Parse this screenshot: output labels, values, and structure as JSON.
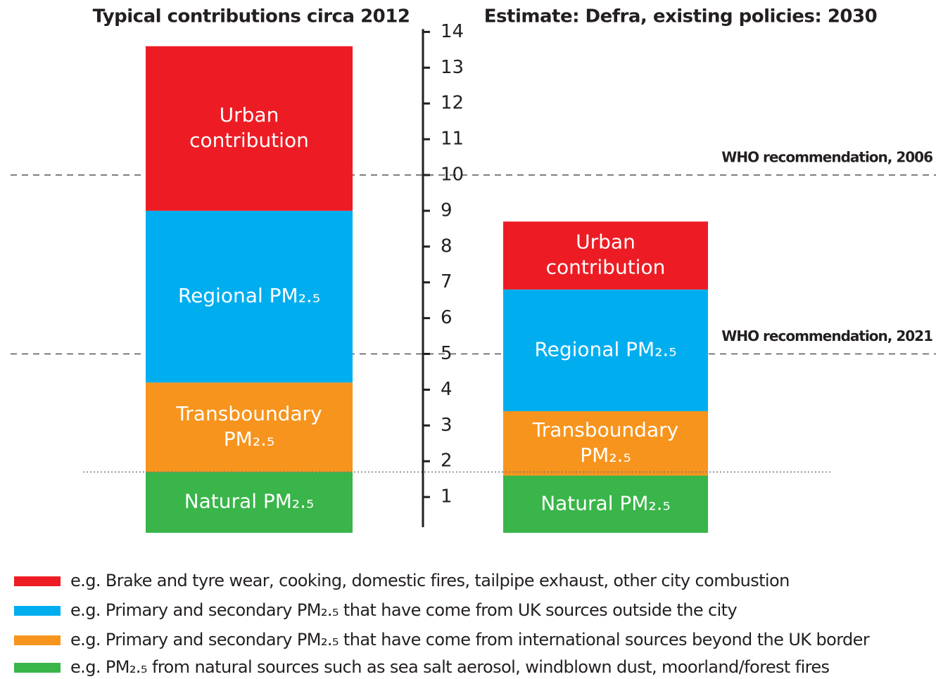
{
  "chart_data": {
    "type": "stacked_bar",
    "categories": [
      "Typical contributions circa 2012",
      "Estimate: Defra, existing policies: 2030"
    ],
    "series": [
      {
        "name": "Urban contribution",
        "color": "#ed1c24",
        "values": [
          4.6,
          1.9
        ],
        "description": "e.g. Brake and tyre wear, cooking, domestic fires, tailpipe exhaust, other city combustion"
      },
      {
        "name": "Regional PM₂.₅",
        "color": "#00aeef",
        "values": [
          4.8,
          3.4
        ],
        "description": "e.g. Primary and secondary PM₂.₅ that have come from UK sources outside the city"
      },
      {
        "name": "Transboundary PM₂.₅",
        "color": "#f7941d",
        "values": [
          2.5,
          1.8
        ],
        "description": "e.g. Primary and secondary PM₂.₅ that have come from international sources beyond the UK border"
      },
      {
        "name": "Natural PM₂.₅",
        "color": "#39b54a",
        "values": [
          1.7,
          1.6
        ],
        "description": "e.g. PM₂.₅ from natural sources such as sea salt aerosol, windblown dust, moorland/forest fires"
      }
    ],
    "ylim": [
      0,
      14
    ],
    "yticks": [
      1,
      2,
      3,
      4,
      5,
      6,
      7,
      8,
      9,
      10,
      11,
      12,
      13,
      14
    ],
    "reference_lines": [
      {
        "value": 10,
        "label": "WHO recommendation, 2006"
      },
      {
        "value": 5,
        "label": "WHO recommendation, 2021"
      }
    ]
  }
}
